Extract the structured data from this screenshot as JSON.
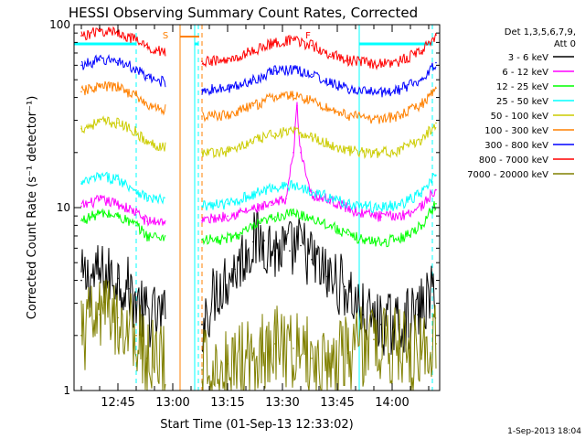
{
  "chart_data": {
    "type": "line",
    "title": "HESSI Observing Summary Count Rates, Corrected",
    "xlabel": "Start Time (01-Sep-13 12:33:02)",
    "ylabel": "Corrected Count Rate (s⁻¹ detector⁻¹)",
    "yscale": "log",
    "ylim": [
      1,
      100
    ],
    "xlim": [
      "12:33",
      "14:13"
    ],
    "x_tick_labels": [
      "12:45",
      "13:00",
      "13:15",
      "13:30",
      "13:45",
      "14:00"
    ],
    "y_tick_labels": [
      "1",
      "10",
      "100"
    ],
    "plot_date": "1-Sep-2013 18:04",
    "legend_title": [
      "Det 1,3,5,6,7,9,",
      "Att 0"
    ],
    "segment_markers": [
      {
        "label": "S",
        "x": "12:58",
        "color": "#ff8000"
      },
      {
        "label": "F",
        "x": "13:37",
        "color": "#ff0000"
      }
    ],
    "night_intervals": [
      [
        "12:33",
        "12:50"
      ],
      [
        "13:06",
        "13:07"
      ],
      [
        "13:51",
        "14:11"
      ]
    ],
    "saa_interval": [
      "13:02",
      "13:08"
    ],
    "series": [
      {
        "name": "3 - 6 keV",
        "color": "#000000",
        "points": [
          [
            "12:35",
            4.0
          ],
          [
            "12:40",
            4.3
          ],
          [
            "12:45",
            4.1
          ],
          [
            "12:48",
            3.6
          ],
          [
            "12:52",
            2.6
          ],
          [
            "13:08",
            2.3
          ],
          [
            "13:12",
            3.6
          ],
          [
            "13:17",
            4.6
          ],
          [
            "13:22",
            6.5
          ],
          [
            "13:25",
            6.6
          ],
          [
            "13:28",
            5.8
          ],
          [
            "13:32",
            5.8
          ],
          [
            "13:35",
            6.2
          ],
          [
            "13:38",
            5.2
          ],
          [
            "13:42",
            4.2
          ],
          [
            "13:47",
            3.7
          ],
          [
            "13:52",
            2.6
          ],
          [
            "13:57",
            2.3
          ],
          [
            "14:02",
            2.3
          ],
          [
            "14:07",
            2.6
          ],
          [
            "14:12",
            3.6
          ]
        ]
      },
      {
        "name": "6 - 12 keV",
        "color": "#ff00ff",
        "points": [
          [
            "12:35",
            10.2
          ],
          [
            "12:40",
            11.0
          ],
          [
            "12:45",
            10.5
          ],
          [
            "12:50",
            9.4
          ],
          [
            "12:53",
            8.4
          ],
          [
            "13:08",
            8.5
          ],
          [
            "13:15",
            9.0
          ],
          [
            "13:22",
            9.8
          ],
          [
            "13:27",
            10.3
          ],
          [
            "13:31",
            11.2
          ],
          [
            "13:33",
            20.0
          ],
          [
            "13:34",
            36.0
          ],
          [
            "13:35",
            20.0
          ],
          [
            "13:38",
            11.8
          ],
          [
            "13:43",
            11.0
          ],
          [
            "13:50",
            9.5
          ],
          [
            "13:57",
            8.9
          ],
          [
            "14:03",
            9.1
          ],
          [
            "14:08",
            10.2
          ],
          [
            "14:12",
            12.5
          ]
        ]
      },
      {
        "name": "12 - 25 keV",
        "color": "#00ff00",
        "points": [
          [
            "12:35",
            8.5
          ],
          [
            "12:40",
            9.3
          ],
          [
            "12:45",
            9.0
          ],
          [
            "12:50",
            8.0
          ],
          [
            "12:53",
            7.0
          ],
          [
            "13:08",
            6.7
          ],
          [
            "13:13",
            6.6
          ],
          [
            "13:18",
            7.1
          ],
          [
            "13:23",
            8.0
          ],
          [
            "13:28",
            8.9
          ],
          [
            "13:33",
            9.3
          ],
          [
            "13:38",
            8.8
          ],
          [
            "13:43",
            8.0
          ],
          [
            "13:48",
            7.1
          ],
          [
            "13:53",
            6.6
          ],
          [
            "13:58",
            6.5
          ],
          [
            "14:03",
            6.9
          ],
          [
            "14:08",
            8.0
          ],
          [
            "14:12",
            10.5
          ]
        ]
      },
      {
        "name": "25 - 50 keV",
        "color": "#00ffff",
        "points": [
          [
            "12:35",
            13.5
          ],
          [
            "12:40",
            14.8
          ],
          [
            "12:45",
            14.3
          ],
          [
            "12:50",
            12.5
          ],
          [
            "12:53",
            11.3
          ],
          [
            "13:08",
            10.2
          ],
          [
            "13:15",
            10.5
          ],
          [
            "13:22",
            11.8
          ],
          [
            "13:28",
            13.0
          ],
          [
            "13:33",
            13.2
          ],
          [
            "13:38",
            12.4
          ],
          [
            "13:43",
            11.3
          ],
          [
            "13:48",
            10.5
          ],
          [
            "13:55",
            10.0
          ],
          [
            "14:02",
            10.3
          ],
          [
            "14:08",
            12.0
          ],
          [
            "14:12",
            15.0
          ]
        ]
      },
      {
        "name": "50 - 100 keV",
        "color": "#cccc00",
        "points": [
          [
            "12:35",
            27.0
          ],
          [
            "12:40",
            29.5
          ],
          [
            "12:45",
            29.0
          ],
          [
            "12:50",
            26.0
          ],
          [
            "12:53",
            22.5
          ],
          [
            "13:08",
            20.0
          ],
          [
            "13:15",
            20.3
          ],
          [
            "13:22",
            23.0
          ],
          [
            "13:28",
            25.5
          ],
          [
            "13:33",
            26.0
          ],
          [
            "13:38",
            24.5
          ],
          [
            "13:43",
            22.0
          ],
          [
            "13:48",
            20.5
          ],
          [
            "13:55",
            19.8
          ],
          [
            "14:02",
            20.5
          ],
          [
            "14:08",
            23.5
          ],
          [
            "14:12",
            29.0
          ]
        ]
      },
      {
        "name": "100 - 300 keV",
        "color": "#ff8000",
        "points": [
          [
            "12:35",
            43.0
          ],
          [
            "12:40",
            46.0
          ],
          [
            "12:45",
            45.5
          ],
          [
            "12:50",
            41.0
          ],
          [
            "12:53",
            36.0
          ],
          [
            "13:08",
            31.5
          ],
          [
            "13:15",
            32.0
          ],
          [
            "13:22",
            36.0
          ],
          [
            "13:28",
            40.5
          ],
          [
            "13:33",
            41.0
          ],
          [
            "13:38",
            38.5
          ],
          [
            "13:43",
            34.5
          ],
          [
            "13:48",
            32.0
          ],
          [
            "13:55",
            30.5
          ],
          [
            "14:02",
            31.5
          ],
          [
            "14:08",
            36.5
          ],
          [
            "14:12",
            45.0
          ]
        ]
      },
      {
        "name": "300 - 800 keV",
        "color": "#0000ff",
        "points": [
          [
            "12:35",
            60.0
          ],
          [
            "12:40",
            64.0
          ],
          [
            "12:45",
            63.5
          ],
          [
            "12:50",
            57.0
          ],
          [
            "12:53",
            51.0
          ],
          [
            "13:08",
            44.0
          ],
          [
            "13:15",
            44.5
          ],
          [
            "13:22",
            50.0
          ],
          [
            "13:28",
            56.0
          ],
          [
            "13:33",
            57.0
          ],
          [
            "13:38",
            53.5
          ],
          [
            "13:43",
            48.0
          ],
          [
            "13:48",
            44.5
          ],
          [
            "13:55",
            42.5
          ],
          [
            "14:02",
            44.0
          ],
          [
            "14:08",
            50.5
          ],
          [
            "14:12",
            62.0
          ]
        ]
      },
      {
        "name": "800 - 7000 keV",
        "color": "#ff0000",
        "points": [
          [
            "12:35",
            87.0
          ],
          [
            "12:40",
            92.0
          ],
          [
            "12:45",
            91.0
          ],
          [
            "12:50",
            82.0
          ],
          [
            "12:53",
            75.0
          ],
          [
            "13:08",
            63.0
          ],
          [
            "13:15",
            63.5
          ],
          [
            "13:22",
            72.0
          ],
          [
            "13:28",
            80.0
          ],
          [
            "13:33",
            82.0
          ],
          [
            "13:38",
            77.0
          ],
          [
            "13:43",
            69.0
          ],
          [
            "13:48",
            64.0
          ],
          [
            "13:55",
            61.0
          ],
          [
            "14:02",
            63.0
          ],
          [
            "14:08",
            72.0
          ],
          [
            "14:12",
            88.0
          ]
        ]
      },
      {
        "name": "7000 - 20000 keV",
        "color": "#808000",
        "points": [
          [
            "12:35",
            2.0
          ],
          [
            "12:40",
            2.6
          ],
          [
            "12:45",
            2.5
          ],
          [
            "12:50",
            2.0
          ],
          [
            "12:53",
            1.5
          ],
          [
            "13:08",
            1.3
          ],
          [
            "13:15",
            1.4
          ],
          [
            "13:22",
            1.6
          ],
          [
            "13:28",
            1.8
          ],
          [
            "13:33",
            1.7
          ],
          [
            "13:38",
            1.5
          ],
          [
            "13:43",
            1.4
          ],
          [
            "13:48",
            1.6
          ],
          [
            "13:55",
            1.9
          ],
          [
            "14:02",
            1.7
          ],
          [
            "14:08",
            1.5
          ],
          [
            "14:12",
            1.8
          ]
        ]
      }
    ]
  }
}
